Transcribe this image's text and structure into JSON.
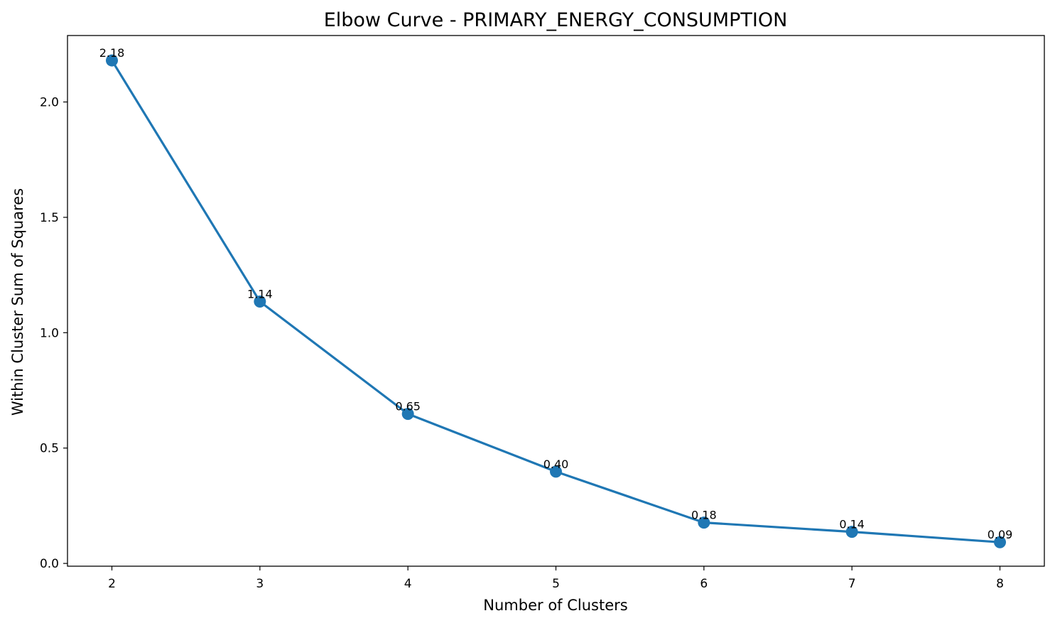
{
  "chart_data": {
    "type": "line",
    "title": "Elbow Curve - PRIMARY_ENERGY_CONSUMPTION",
    "xlabel": "Number of Clusters",
    "ylabel": "Within Cluster Sum of Squares",
    "x": [
      2,
      3,
      4,
      5,
      6,
      7,
      8
    ],
    "series": [
      {
        "values": [
          2.18,
          1.135,
          0.648,
          0.398,
          0.177,
          0.137,
          0.092
        ],
        "labels": [
          "2.18",
          "1.14",
          "0.65",
          "0.40",
          "0.18",
          "0.14",
          "0.09"
        ],
        "color": "#1f77b4",
        "marker": "circle"
      }
    ],
    "xticks": [
      2,
      3,
      4,
      5,
      6,
      7,
      8
    ],
    "xtick_labels": [
      "2",
      "3",
      "4",
      "5",
      "6",
      "7",
      "8"
    ],
    "yticks": [
      0.0,
      0.5,
      1.0,
      1.5,
      2.0
    ],
    "ytick_labels": [
      "0.0",
      "0.5",
      "1.0",
      "1.5",
      "2.0"
    ],
    "xlim": [
      1.7,
      8.3
    ],
    "ylim": [
      -0.012,
      2.288
    ],
    "grid": false,
    "legend": "none"
  }
}
